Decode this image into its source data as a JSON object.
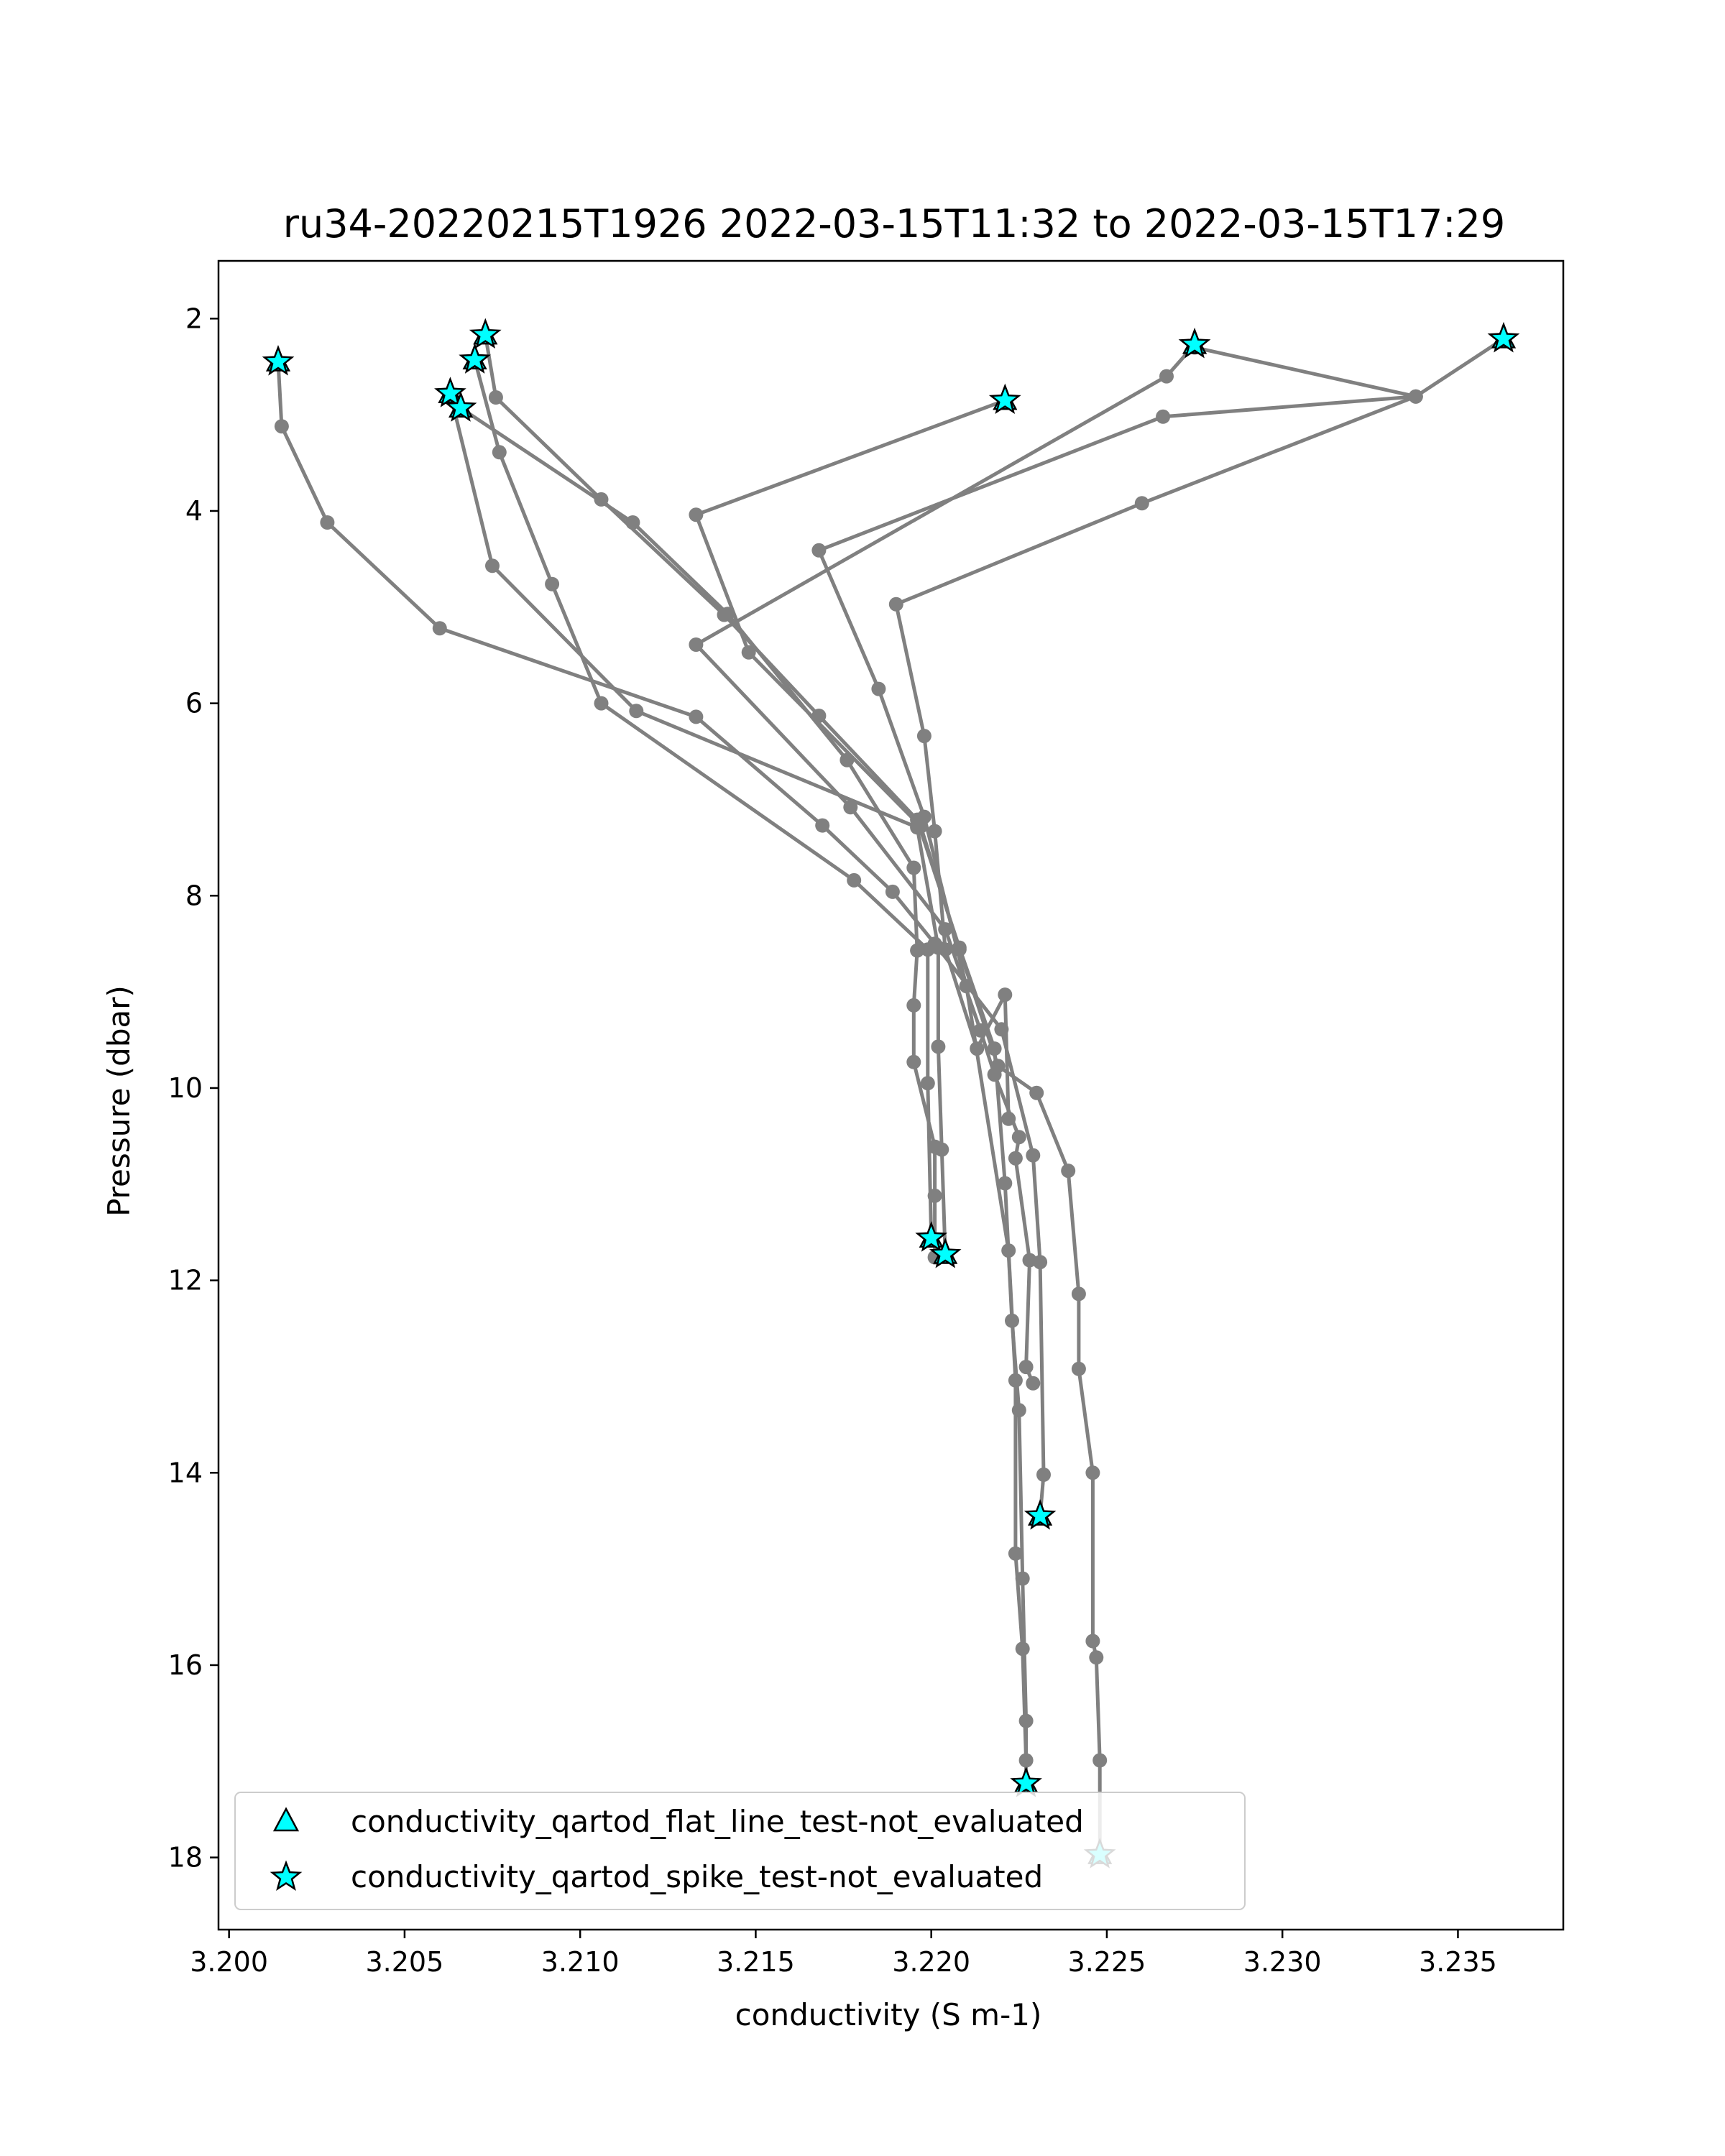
{
  "chart_data": {
    "type": "line",
    "title": "ru34-20220215T1926 2022-03-15T11:32 to 2022-03-15T17:29",
    "xlabel": "conductivity (S m-1)",
    "ylabel": "Pressure (dbar)",
    "xlim": [
      3.1997,
      3.238
    ],
    "ylim": [
      18.75,
      1.4
    ],
    "y_inverted": true,
    "x_ticks": [
      "3.200",
      "3.205",
      "3.210",
      "3.215",
      "3.220",
      "3.225",
      "3.230",
      "3.235"
    ],
    "x_tick_values": [
      3.2,
      3.205,
      3.21,
      3.215,
      3.22,
      3.225,
      3.23,
      3.235
    ],
    "y_ticks": [
      "2",
      "4",
      "6",
      "8",
      "10",
      "12",
      "14",
      "16",
      "18"
    ],
    "y_tick_values": [
      2,
      4,
      6,
      8,
      10,
      12,
      14,
      16,
      18
    ],
    "grid": false,
    "line_color": "#808080",
    "marker_color": "#00ffff",
    "legend_position": "lower-left",
    "legend": [
      {
        "label": "conductivity_qartod_flat_line_test-not_evaluated",
        "marker": "triangle"
      },
      {
        "label": "conductivity_qartod_spike_test-not_evaluated",
        "marker": "star"
      }
    ],
    "series": [
      {
        "points": [
          [
            3.2014,
            2.45
          ],
          [
            3.2015,
            3.12
          ],
          [
            3.2028,
            4.12
          ],
          [
            3.206,
            5.22
          ],
          [
            3.2133,
            6.14
          ],
          [
            3.2169,
            7.27
          ],
          [
            3.2189,
            7.96
          ],
          [
            3.2201,
            8.5
          ],
          [
            3.222,
            9.39
          ],
          [
            3.2229,
            10.7
          ],
          [
            3.2231,
            11.81
          ],
          [
            3.2232,
            14.02
          ],
          [
            3.2231,
            14.45
          ]
        ]
      },
      {
        "points": [
          [
            3.2073,
            2.17
          ],
          [
            3.2076,
            2.82
          ],
          [
            3.2106,
            3.88
          ],
          [
            3.2141,
            5.08
          ],
          [
            3.2168,
            6.13
          ],
          [
            3.2196,
            7.21
          ],
          [
            3.2208,
            8.54
          ],
          [
            3.2218,
            9.59
          ],
          [
            3.2221,
            10.99
          ],
          [
            3.2223,
            12.42
          ],
          [
            3.2225,
            13.35
          ],
          [
            3.2226,
            15.1
          ],
          [
            3.2227,
            16.58
          ],
          [
            3.2227,
            17.23
          ]
        ]
      },
      {
        "points": [
          [
            3.207,
            2.43
          ],
          [
            3.2077,
            3.39
          ],
          [
            3.2092,
            4.76
          ],
          [
            3.2106,
            6.0
          ],
          [
            3.2178,
            7.84
          ],
          [
            3.2199,
            8.56
          ],
          [
            3.2199,
            9.95
          ],
          [
            3.22,
            11.56
          ]
        ]
      },
      {
        "points": [
          [
            3.2063,
            2.78
          ],
          [
            3.2075,
            4.57
          ],
          [
            3.2116,
            6.08
          ],
          [
            3.2196,
            7.29
          ],
          [
            3.2202,
            8.54
          ],
          [
            3.2202,
            9.57
          ],
          [
            3.2203,
            10.64
          ],
          [
            3.2204,
            11.73
          ]
        ]
      },
      {
        "points": [
          [
            3.2066,
            2.93
          ],
          [
            3.2115,
            4.12
          ],
          [
            3.2142,
            5.07
          ],
          [
            3.2176,
            6.59
          ],
          [
            3.2195,
            7.71
          ],
          [
            3.2196,
            8.57
          ],
          [
            3.2195,
            9.14
          ],
          [
            3.2195,
            9.73
          ],
          [
            3.2201,
            10.61
          ],
          [
            3.2201,
            11.12
          ],
          [
            3.2201,
            11.76
          ]
        ]
      },
      {
        "points": [
          [
            3.2221,
            2.85
          ],
          [
            3.2133,
            4.04
          ],
          [
            3.2148,
            5.47
          ],
          [
            3.2197,
            7.28
          ],
          [
            3.2208,
            8.56
          ],
          [
            3.2219,
            9.77
          ],
          [
            3.223,
            10.05
          ],
          [
            3.2239,
            10.86
          ],
          [
            3.2242,
            12.14
          ],
          [
            3.2242,
            12.92
          ],
          [
            3.2246,
            14.0
          ],
          [
            3.2246,
            15.75
          ],
          [
            3.2247,
            15.92
          ],
          [
            3.2248,
            16.99
          ],
          [
            3.2248,
            17.97
          ]
        ]
      },
      {
        "points": [
          [
            3.2275,
            2.27
          ],
          [
            3.2267,
            2.6
          ],
          [
            3.2133,
            5.39
          ],
          [
            3.2177,
            7.08
          ],
          [
            3.2204,
            8.35
          ],
          [
            3.2214,
            9.4
          ],
          [
            3.2218,
            9.86
          ],
          [
            3.2225,
            10.51
          ],
          [
            3.2224,
            10.73
          ],
          [
            3.2228,
            11.79
          ],
          [
            3.2227,
            12.9
          ],
          [
            3.2229,
            13.07
          ]
        ]
      },
      {
        "points": [
          [
            3.2363,
            2.21
          ],
          [
            3.2338,
            2.81
          ],
          [
            3.2266,
            3.02
          ],
          [
            3.2168,
            4.41
          ],
          [
            3.2185,
            5.85
          ],
          [
            3.2198,
            7.18
          ],
          [
            3.221,
            8.94
          ],
          [
            3.2222,
            11.69
          ],
          [
            3.2224,
            13.04
          ],
          [
            3.2224,
            14.84
          ],
          [
            3.2226,
            15.83
          ],
          [
            3.2227,
            16.99
          ]
        ]
      },
      {
        "points": [
          [
            3.2275,
            2.3
          ],
          [
            3.2338,
            2.81
          ],
          [
            3.226,
            3.92
          ],
          [
            3.219,
            4.97
          ],
          [
            3.2198,
            6.34
          ],
          [
            3.2201,
            7.33
          ],
          [
            3.2204,
            8.56
          ],
          [
            3.2213,
            9.59
          ],
          [
            3.2221,
            9.03
          ],
          [
            3.2222,
            10.32
          ]
        ]
      }
    ],
    "flagged_points": [
      [
        3.2014,
        2.45
      ],
      [
        3.2073,
        2.17
      ],
      [
        3.207,
        2.43
      ],
      [
        3.2063,
        2.78
      ],
      [
        3.2066,
        2.93
      ],
      [
        3.2221,
        2.85
      ],
      [
        3.2275,
        2.27
      ],
      [
        3.2363,
        2.21
      ],
      [
        3.22,
        11.56
      ],
      [
        3.2204,
        11.73
      ],
      [
        3.2231,
        14.45
      ],
      [
        3.2227,
        17.23
      ],
      [
        3.2248,
        17.97
      ]
    ]
  }
}
